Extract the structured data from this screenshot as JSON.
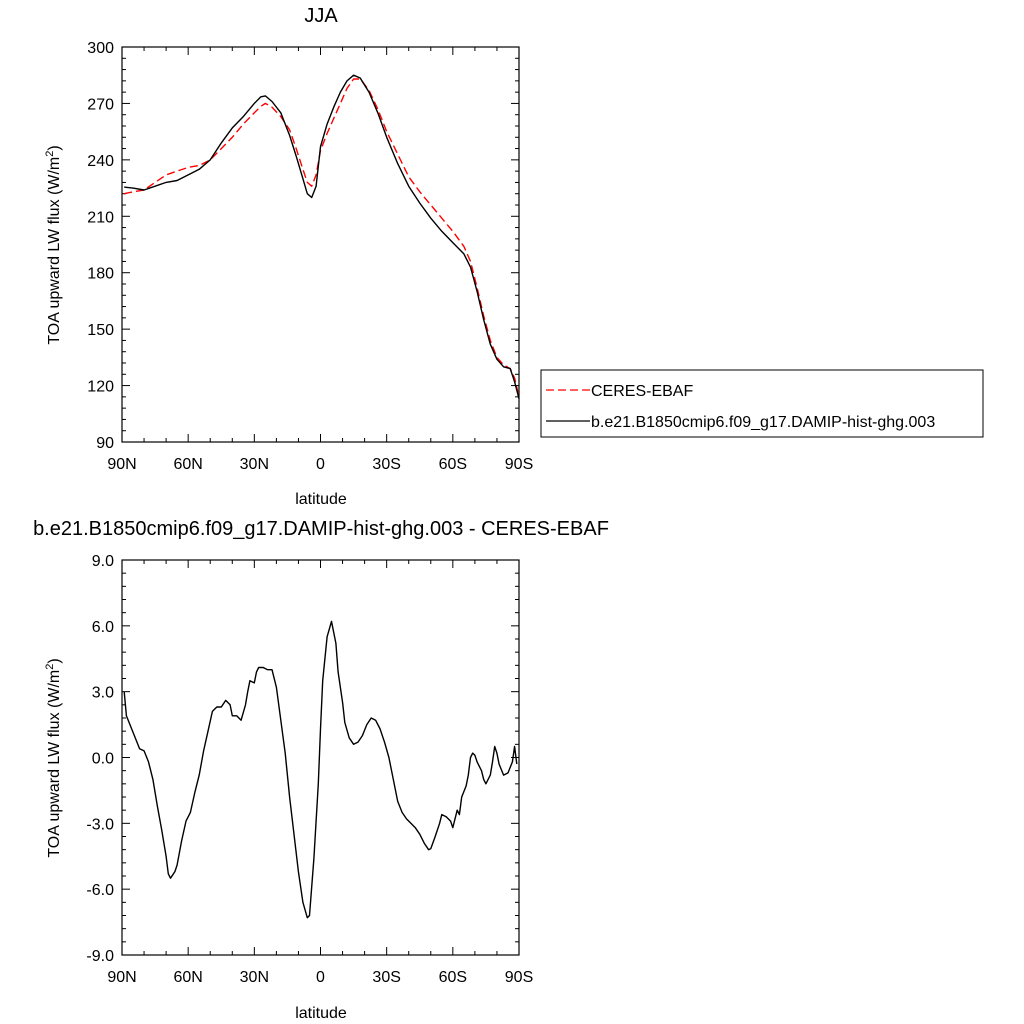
{
  "chart_data": [
    {
      "type": "line",
      "title": "JJA",
      "xlabel": "latitude",
      "ylabel": "TOA upward LW flux (W/m",
      "ylabel_sup": "2",
      "ylabel_end": ")",
      "xlim": [
        90,
        -90
      ],
      "ylim": [
        90,
        300
      ],
      "xticks": [
        90,
        60,
        30,
        0,
        -30,
        -60,
        -90
      ],
      "xtick_labels": [
        "90N",
        "60N",
        "30N",
        "0",
        "30S",
        "60S",
        "90S"
      ],
      "yticks": [
        90,
        120,
        150,
        180,
        210,
        240,
        270,
        300
      ],
      "ytick_labels": [
        "90",
        "120",
        "150",
        "180",
        "210",
        "240",
        "270",
        "300"
      ],
      "legend_position": "right",
      "series": [
        {
          "name": "CERES-EBAF",
          "color": "#ff0000",
          "dash": "dashed",
          "points": [
            [
              89,
              222
            ],
            [
              85,
              223
            ],
            [
              80,
              224
            ],
            [
              75,
              228
            ],
            [
              70,
              232
            ],
            [
              65,
              234
            ],
            [
              60,
              236
            ],
            [
              55,
              237
            ],
            [
              50,
              240
            ],
            [
              45,
              246
            ],
            [
              40,
              252
            ],
            [
              35,
              259
            ],
            [
              30,
              265
            ],
            [
              27,
              268.5
            ],
            [
              25,
              270
            ],
            [
              22,
              268
            ],
            [
              18,
              263
            ],
            [
              14,
              256
            ],
            [
              11,
              246
            ],
            [
              8,
              235
            ],
            [
              6,
              228
            ],
            [
              4,
              226
            ],
            [
              2,
              232
            ],
            [
              0,
              245
            ],
            [
              -3,
              254
            ],
            [
              -6,
              262
            ],
            [
              -9,
              270
            ],
            [
              -12,
              278
            ],
            [
              -15,
              283
            ],
            [
              -18,
              283
            ],
            [
              -22,
              277
            ],
            [
              -26,
              267
            ],
            [
              -30,
              255
            ],
            [
              -35,
              243
            ],
            [
              -40,
              231
            ],
            [
              -45,
              223
            ],
            [
              -50,
              216
            ],
            [
              -55,
              209
            ],
            [
              -60,
              202
            ],
            [
              -65,
              194
            ],
            [
              -68,
              186
            ],
            [
              -71,
              172
            ],
            [
              -74,
              157
            ],
            [
              -77,
              144
            ],
            [
              -80,
              135
            ],
            [
              -83,
              131
            ],
            [
              -86,
              129
            ],
            [
              -88,
              124
            ],
            [
              -90,
              114
            ]
          ]
        },
        {
          "name": "b.e21.B1850cmip6.f09_g17.DAMIP-hist-ghg.003",
          "color": "#000000",
          "dash": "solid",
          "points": [
            [
              89,
              225.5
            ],
            [
              85,
              225
            ],
            [
              80,
              224
            ],
            [
              75,
              226
            ],
            [
              70,
              228
            ],
            [
              65,
              229
            ],
            [
              60,
              232
            ],
            [
              55,
              235
            ],
            [
              50,
              240
            ],
            [
              45,
              249
            ],
            [
              40,
              257
            ],
            [
              35,
              263
            ],
            [
              30,
              270
            ],
            [
              27,
              273.5
            ],
            [
              25,
              274
            ],
            [
              22,
              271
            ],
            [
              18,
              265
            ],
            [
              14,
              253
            ],
            [
              11,
              242
            ],
            [
              8,
              230
            ],
            [
              6,
              222
            ],
            [
              4,
              220
            ],
            [
              2,
              226
            ],
            [
              0,
              247
            ],
            [
              -3,
              259
            ],
            [
              -6,
              268
            ],
            [
              -9,
              276
            ],
            [
              -12,
              282
            ],
            [
              -15,
              285
            ],
            [
              -18,
              283.5
            ],
            [
              -22,
              276
            ],
            [
              -26,
              265
            ],
            [
              -30,
              252
            ],
            [
              -35,
              238
            ],
            [
              -40,
              226
            ],
            [
              -45,
              217
            ],
            [
              -50,
              209
            ],
            [
              -55,
              202
            ],
            [
              -60,
              196
            ],
            [
              -65,
              190
            ],
            [
              -68,
              183
            ],
            [
              -71,
              170
            ],
            [
              -74,
              155
            ],
            [
              -77,
              142
            ],
            [
              -80,
              134
            ],
            [
              -83,
              130
            ],
            [
              -86,
              129
            ],
            [
              -88,
              122
            ],
            [
              -90,
              113
            ]
          ]
        }
      ]
    },
    {
      "type": "line",
      "title": "b.e21.B1850cmip6.f09_g17.DAMIP-hist-ghg.003 - CERES-EBAF",
      "xlabel": "latitude",
      "ylabel": "TOA upward LW flux (W/m",
      "ylabel_sup": "2",
      "ylabel_end": ")",
      "xlim": [
        90,
        -90
      ],
      "ylim": [
        -9,
        9
      ],
      "xticks": [
        90,
        60,
        30,
        0,
        -30,
        -60,
        -90
      ],
      "xtick_labels": [
        "90N",
        "60N",
        "30N",
        "0",
        "30S",
        "60S",
        "90S"
      ],
      "yticks": [
        -9,
        -6,
        -3,
        0,
        3,
        6,
        9
      ],
      "ytick_labels": [
        "-9.0",
        "-6.0",
        "-3.0",
        "0.0",
        "3.0",
        "6.0",
        "9.0"
      ],
      "series": [
        {
          "color": "#000000",
          "dash": "solid",
          "points": [
            [
              89,
              3.0
            ],
            [
              88,
              1.9
            ],
            [
              86,
              1.4
            ],
            [
              84,
              0.9
            ],
            [
              82,
              0.4
            ],
            [
              80,
              0.3
            ],
            [
              78,
              -0.2
            ],
            [
              76,
              -1.0
            ],
            [
              74,
              -2.2
            ],
            [
              72,
              -3.3
            ],
            [
              70,
              -4.5
            ],
            [
              69,
              -5.3
            ],
            [
              68,
              -5.5
            ],
            [
              66,
              -5.2
            ],
            [
              65,
              -4.9
            ],
            [
              63,
              -3.8
            ],
            [
              61,
              -2.9
            ],
            [
              59,
              -2.5
            ],
            [
              57,
              -1.6
            ],
            [
              55,
              -0.8
            ],
            [
              53,
              0.3
            ],
            [
              51,
              1.2
            ],
            [
              49,
              2.1
            ],
            [
              47,
              2.3
            ],
            [
              45,
              2.3
            ],
            [
              43,
              2.6
            ],
            [
              41,
              2.4
            ],
            [
              40,
              1.9
            ],
            [
              38,
              1.9
            ],
            [
              36,
              1.7
            ],
            [
              34,
              2.4
            ],
            [
              33,
              3.0
            ],
            [
              32,
              3.5
            ],
            [
              30,
              3.4
            ],
            [
              29,
              3.9
            ],
            [
              28,
              4.1
            ],
            [
              26,
              4.1
            ],
            [
              24,
              4.0
            ],
            [
              22,
              4.0
            ],
            [
              20,
              3.2
            ],
            [
              18,
              1.7
            ],
            [
              16,
              0.2
            ],
            [
              14,
              -1.8
            ],
            [
              12,
              -3.5
            ],
            [
              10,
              -5.2
            ],
            [
              8,
              -6.6
            ],
            [
              6,
              -7.3
            ],
            [
              5,
              -7.2
            ],
            [
              3,
              -4.6
            ],
            [
              1,
              -1.2
            ],
            [
              0,
              1.3
            ],
            [
              -1,
              3.5
            ],
            [
              -3,
              5.5
            ],
            [
              -5,
              6.2
            ],
            [
              -7,
              5.2
            ],
            [
              -8,
              3.9
            ],
            [
              -10,
              2.5
            ],
            [
              -11,
              1.6
            ],
            [
              -13,
              0.9
            ],
            [
              -15,
              0.6
            ],
            [
              -17,
              0.7
            ],
            [
              -19,
              1.0
            ],
            [
              -21,
              1.5
            ],
            [
              -23,
              1.8
            ],
            [
              -25,
              1.7
            ],
            [
              -27,
              1.3
            ],
            [
              -29,
              0.7
            ],
            [
              -31,
              0.0
            ],
            [
              -33,
              -1.0
            ],
            [
              -35,
              -2.0
            ],
            [
              -37,
              -2.5
            ],
            [
              -39,
              -2.8
            ],
            [
              -41,
              -3.0
            ],
            [
              -43,
              -3.2
            ],
            [
              -45,
              -3.5
            ],
            [
              -47,
              -3.9
            ],
            [
              -49,
              -4.2
            ],
            [
              -50,
              -4.15
            ],
            [
              -52,
              -3.6
            ],
            [
              -54,
              -3.0
            ],
            [
              -55,
              -2.6
            ],
            [
              -57,
              -2.7
            ],
            [
              -59,
              -2.9
            ],
            [
              -60,
              -3.2
            ],
            [
              -61,
              -2.8
            ],
            [
              -62,
              -2.4
            ],
            [
              -63,
              -2.6
            ],
            [
              -64,
              -1.8
            ],
            [
              -66,
              -1.3
            ],
            [
              -67,
              -0.8
            ],
            [
              -68,
              0.0
            ],
            [
              -69,
              0.2
            ],
            [
              -70,
              0.1
            ],
            [
              -71,
              -0.2
            ],
            [
              -72,
              -0.4
            ],
            [
              -73,
              -0.6
            ],
            [
              -74,
              -1.0
            ],
            [
              -75,
              -1.2
            ],
            [
              -76,
              -1.0
            ],
            [
              -77,
              -0.8
            ],
            [
              -78,
              -0.2
            ],
            [
              -79,
              0.5
            ],
            [
              -80,
              0.2
            ],
            [
              -81,
              -0.3
            ],
            [
              -83,
              -0.8
            ],
            [
              -85,
              -0.7
            ],
            [
              -87,
              -0.2
            ],
            [
              -88,
              0.5
            ],
            [
              -89,
              -0.3
            ]
          ]
        }
      ]
    }
  ]
}
